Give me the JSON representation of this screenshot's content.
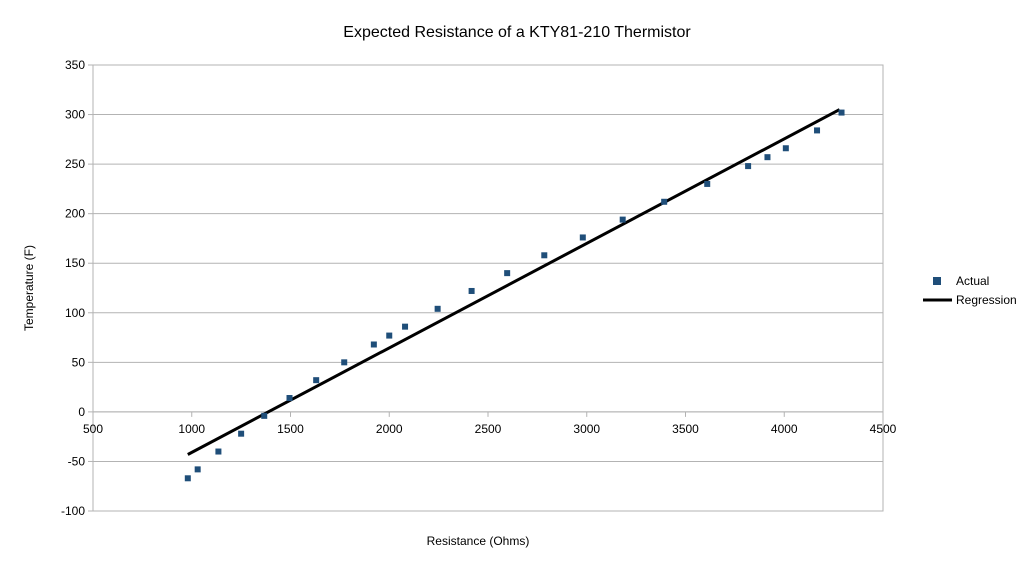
{
  "chart_data": {
    "type": "scatter",
    "title": "Expected Resistance of a KTY81-210 Thermistor",
    "xlabel": "Resistance (Ohms)",
    "ylabel": "Temperature (F)",
    "xlim": [
      500,
      4500
    ],
    "ylim": [
      -100,
      350
    ],
    "xticks": [
      500,
      1000,
      1500,
      2000,
      2500,
      3000,
      3500,
      4000,
      4500
    ],
    "yticks": [
      -100,
      -50,
      0,
      50,
      100,
      150,
      200,
      250,
      300,
      350
    ],
    "grid": true,
    "legend_position": "right",
    "series": [
      {
        "name": "Actual",
        "type": "scatter",
        "color": "#1f4e79",
        "points": [
          [
            980,
            -67
          ],
          [
            1030,
            -58
          ],
          [
            1135,
            -40
          ],
          [
            1250,
            -22
          ],
          [
            1367,
            -4
          ],
          [
            1495,
            14
          ],
          [
            1630,
            32
          ],
          [
            1772,
            50
          ],
          [
            1922,
            68
          ],
          [
            2000,
            77
          ],
          [
            2080,
            86
          ],
          [
            2245,
            104
          ],
          [
            2417,
            122
          ],
          [
            2597,
            140
          ],
          [
            2785,
            158
          ],
          [
            2980,
            176
          ],
          [
            3182,
            194
          ],
          [
            3392,
            212
          ],
          [
            3610,
            230
          ],
          [
            3817,
            248
          ],
          [
            3915,
            257
          ],
          [
            4008,
            266
          ],
          [
            4166,
            284
          ],
          [
            4290,
            302
          ]
        ]
      },
      {
        "name": "Regression",
        "type": "line",
        "color": "#000000",
        "points": [
          [
            980,
            -43
          ],
          [
            4280,
            305
          ]
        ]
      }
    ]
  }
}
